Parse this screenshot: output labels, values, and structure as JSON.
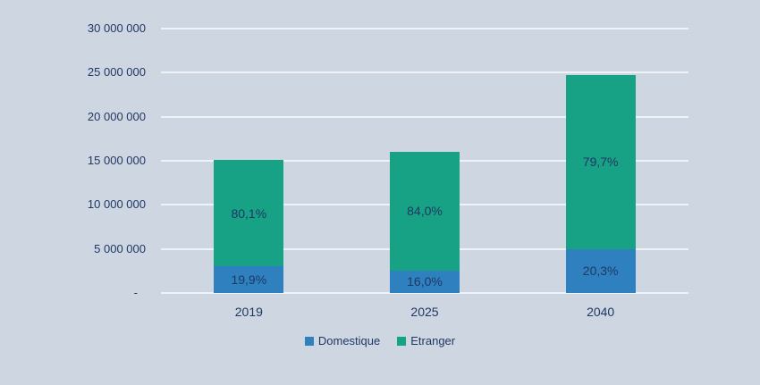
{
  "colors": {
    "background": "#CED6E1",
    "gridline": "#EFF3F7",
    "text": "#1F3864",
    "domestique": "#2E81BE",
    "etranger": "#17A185"
  },
  "chart_data": {
    "type": "bar",
    "subtype": "stacked",
    "title": "",
    "xlabel": "",
    "ylabel": "",
    "categories": [
      "2019",
      "2025",
      "2040"
    ],
    "series": [
      {
        "name": "Domestique",
        "color_key": "domestique",
        "values": [
          3000000,
          2560000,
          5000000
        ],
        "percent_labels": [
          "19,9%",
          "16,0%",
          "20,3%"
        ]
      },
      {
        "name": "Etranger",
        "color_key": "etranger",
        "values": [
          12100000,
          13440000,
          19700000
        ],
        "percent_labels": [
          "80,1%",
          "84,0%",
          "79,7%"
        ]
      }
    ],
    "totals_estimated": [
      15100000,
      16000000,
      24700000
    ],
    "y_axis": {
      "min": 0,
      "max": 30000000,
      "step": 5000000,
      "tick_labels": [
        "30 000 000",
        "25 000 000",
        "20 000 000",
        "15 000 000",
        "10 000 000",
        "5 000 000",
        "-"
      ]
    },
    "grid": true,
    "legend": {
      "position": "bottom",
      "entries": [
        "Domestique",
        "Etranger"
      ]
    }
  }
}
